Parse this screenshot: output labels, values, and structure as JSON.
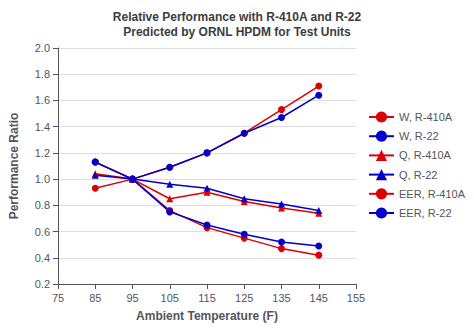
{
  "chart_data": {
    "type": "line",
    "title": "Relative Performance with R-410A and R-22\nPredicted by ORNL HPDM for Test Units",
    "x_label": "Ambient Temperature (F)",
    "y_label": "Performance Ratio",
    "x": [
      85,
      95,
      105,
      115,
      125,
      135,
      145
    ],
    "series": [
      {
        "name": "W, R-410A",
        "color": "#dd0000",
        "marker": "circle",
        "values": [
          0.93,
          1.0,
          1.09,
          1.2,
          1.35,
          1.53,
          1.71
        ]
      },
      {
        "name": "W, R-22",
        "color": "#0000cc",
        "marker": "circle",
        "values": [
          1.13,
          1.0,
          1.09,
          1.2,
          1.35,
          1.47,
          1.64
        ]
      },
      {
        "name": "Q, R-410A",
        "color": "#dd0000",
        "marker": "triangle",
        "values": [
          1.04,
          1.0,
          0.85,
          0.9,
          0.83,
          0.78,
          0.74
        ]
      },
      {
        "name": "Q, R-22",
        "color": "#0000cc",
        "marker": "triangle",
        "values": [
          1.03,
          1.0,
          0.96,
          0.93,
          0.85,
          0.81,
          0.76
        ]
      },
      {
        "name": "EER, R-410A",
        "color": "#dd0000",
        "marker": "circle",
        "values": [
          1.13,
          1.0,
          0.76,
          0.63,
          0.55,
          0.47,
          0.42
        ]
      },
      {
        "name": "EER, R-22",
        "color": "#0000cc",
        "marker": "circle",
        "values": [
          1.13,
          1.0,
          0.75,
          0.65,
          0.58,
          0.52,
          0.49
        ]
      }
    ],
    "xlim": [
      75,
      155
    ],
    "xticks": [
      75,
      85,
      95,
      105,
      115,
      125,
      135,
      145,
      155
    ],
    "ylim": [
      0.2,
      2.0
    ],
    "yticks": [
      0.2,
      0.4,
      0.6,
      0.8,
      {
        "value": 1.0,
        "label": "1.0"
      },
      1.2,
      1.4,
      1.6,
      1.8,
      {
        "value": 2.0,
        "label": "2.0"
      }
    ],
    "grid": "y",
    "legend": "right"
  }
}
